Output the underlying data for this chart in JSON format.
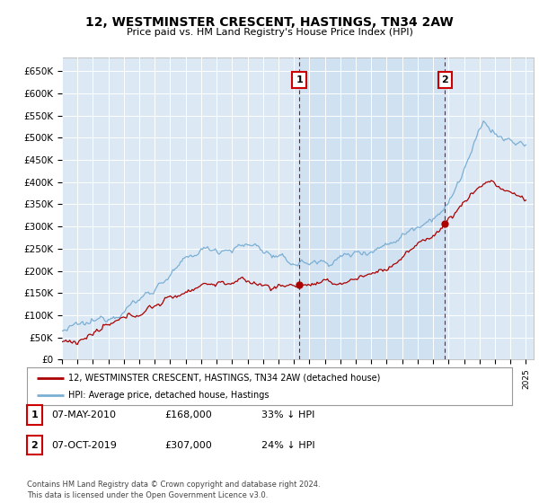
{
  "title": "12, WESTMINSTER CRESCENT, HASTINGS, TN34 2AW",
  "subtitle": "Price paid vs. HM Land Registry's House Price Index (HPI)",
  "plot_bg_color": "#dce9f5",
  "shade_color": "#c8dcf0",
  "ylabel_ticks": [
    "£0",
    "£50K",
    "£100K",
    "£150K",
    "£200K",
    "£250K",
    "£300K",
    "£350K",
    "£400K",
    "£450K",
    "£500K",
    "£550K",
    "£600K",
    "£650K"
  ],
  "ytick_values": [
    0,
    50000,
    100000,
    150000,
    200000,
    250000,
    300000,
    350000,
    400000,
    450000,
    500000,
    550000,
    600000,
    650000
  ],
  "sale1_date_x": 2010.35,
  "sale1_price": 168000,
  "sale1_label": "1",
  "sale2_date_x": 2019.77,
  "sale2_price": 307000,
  "sale2_label": "2",
  "legend_line1": "12, WESTMINSTER CRESCENT, HASTINGS, TN34 2AW (detached house)",
  "legend_line2": "HPI: Average price, detached house, Hastings",
  "table_row1": [
    "1",
    "07-MAY-2010",
    "£168,000",
    "33% ↓ HPI"
  ],
  "table_row2": [
    "2",
    "07-OCT-2019",
    "£307,000",
    "24% ↓ HPI"
  ],
  "footnote": "Contains HM Land Registry data © Crown copyright and database right 2024.\nThis data is licensed under the Open Government Licence v3.0.",
  "hpi_color": "#7aafd4",
  "sale_color": "#aa0000",
  "vline_color": "#cc0000",
  "grid_color": "#ffffff",
  "xmin": 1995,
  "xmax": 2025.5,
  "ymin": 0,
  "ymax": 680000
}
